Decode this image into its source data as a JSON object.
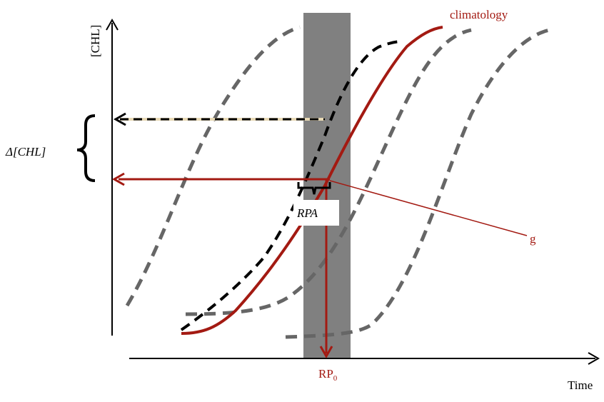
{
  "labels": {
    "y_axis": "[CHL]",
    "x_axis": "Time",
    "delta_chl": "Δ[CHL]",
    "rpa": "RPA",
    "g": "g",
    "climatology": "climatology",
    "rp_base": "RP",
    "rp_sub": "0"
  },
  "colors": {
    "climatology_red": "#a31a12",
    "alt_curve_gray": "#666666",
    "comparison_black": "#000000",
    "band_gray": "#808080",
    "dashed_arrow_fill": "#e8d9b5"
  }
}
